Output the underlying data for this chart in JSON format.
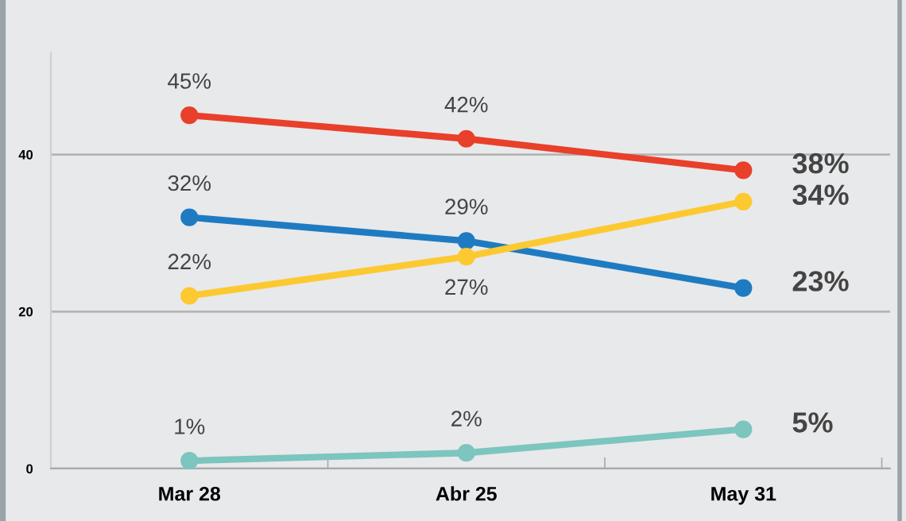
{
  "chart_data": {
    "type": "line",
    "categories": [
      "Mar 28",
      "Abr 25",
      "May 31"
    ],
    "series": [
      {
        "color": "#e8402a",
        "values": [
          45,
          42,
          38
        ],
        "value_labels": [
          "45%",
          "42%",
          "38%"
        ]
      },
      {
        "color": "#1f7bc1",
        "values": [
          32,
          29,
          23
        ],
        "value_labels": [
          "32%",
          "29%",
          "23%"
        ]
      },
      {
        "color": "#fcc931",
        "values": [
          22,
          27,
          34
        ],
        "value_labels": [
          "22%",
          "27%",
          "34%"
        ]
      },
      {
        "color": "#7dc5bf",
        "values": [
          1,
          2,
          5
        ],
        "value_labels": [
          "1%",
          "2%",
          "5%"
        ]
      }
    ],
    "ylim": [
      0,
      53
    ],
    "yticks": [
      0,
      20,
      40
    ],
    "grid": "y",
    "marker": "circle",
    "line_style": "solid"
  }
}
